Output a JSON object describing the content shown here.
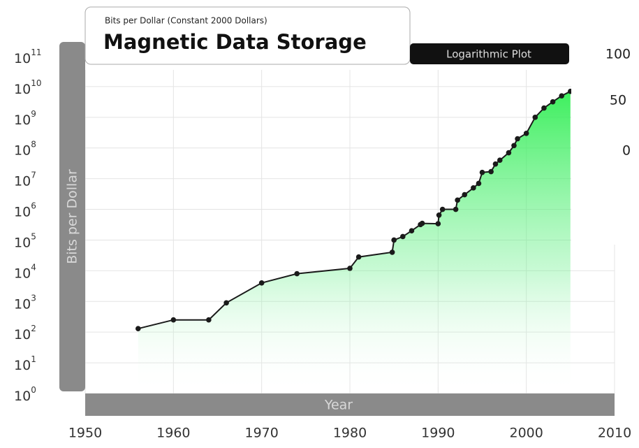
{
  "chart_data": {
    "type": "line",
    "subtitle": "Bits per Dollar (Constant 2000 Dollars)",
    "title": "Magnetic Data Storage",
    "tag": "Logarithmic Plot",
    "y_label": "Bits per Dollar",
    "x_label": "Year",
    "annotations": [
      "100",
      "50",
      "0"
    ],
    "log_y": true,
    "grid": true,
    "color": "#1a1a1a",
    "fill_color": "#33ee55",
    "x": [
      1956,
      1960,
      1964,
      1966,
      1970,
      1974,
      1980,
      1981,
      1984.8,
      1985,
      1986,
      1987,
      1988,
      1988.2,
      1990,
      1990.1,
      1990.5,
      1992,
      1992.2,
      1993,
      1994,
      1994.6,
      1995,
      1996,
      1996.5,
      1997,
      1998,
      1998.6,
      1999,
      2000,
      2001,
      2002,
      2003,
      2004,
      2005
    ],
    "series": [
      {
        "name": "Bits per Dollar",
        "color": "#1a1a1a",
        "values": [
          130,
          250,
          250,
          900,
          4000,
          8000,
          12000,
          28000,
          40000,
          100000,
          130000,
          200000,
          320000,
          350000,
          340000,
          650000,
          1000000,
          1000000,
          2000000,
          3000000,
          5000000,
          7000000,
          16000000,
          17000000,
          30000000,
          40000000,
          70000000,
          120000000,
          200000000,
          300000000,
          1000000000,
          2000000000,
          3200000000,
          5000000000,
          7000000000
        ]
      }
    ],
    "xlim": [
      1950,
      2010
    ],
    "xticks": [
      1950,
      1960,
      1970,
      1980,
      1990,
      2000,
      2010
    ],
    "ylim": [
      1,
      100000000000
    ],
    "yticks": [
      {
        "value": 1,
        "label": "10",
        "exponent": "0"
      },
      {
        "value": 10,
        "label": "10",
        "exponent": "1"
      },
      {
        "value": 100,
        "label": "10",
        "exponent": "2"
      },
      {
        "value": 1000,
        "label": "10",
        "exponent": "3"
      },
      {
        "value": 10000,
        "label": "10",
        "exponent": "4"
      },
      {
        "value": 100000,
        "label": "10",
        "exponent": "5"
      },
      {
        "value": 1000000,
        "label": "10",
        "exponent": "6"
      },
      {
        "value": 10000000,
        "label": "10",
        "exponent": "7"
      },
      {
        "value": 100000000,
        "label": "10",
        "exponent": "8"
      },
      {
        "value": 1000000000,
        "label": "10",
        "exponent": "9"
      },
      {
        "value": 10000000000,
        "label": "10",
        "exponent": "10"
      },
      {
        "value": 100000000000,
        "label": "10",
        "exponent": "11"
      }
    ]
  }
}
